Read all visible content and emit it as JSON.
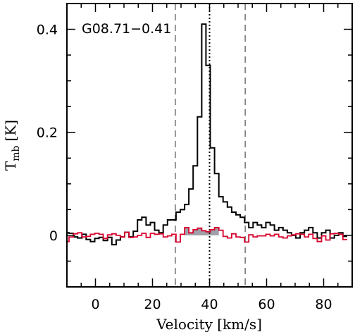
{
  "chart_data": {
    "type": "line",
    "annotation": "G08.71−0.41",
    "xlabel": "Velocity [km/s]",
    "ylabel_main": "T",
    "ylabel_sub": "mb",
    "ylabel_unit": "[K]",
    "xlim": [
      -10,
      90
    ],
    "ylim": [
      -0.1,
      0.45
    ],
    "xticks": [
      0,
      20,
      40,
      60,
      80
    ],
    "xtick_labels": [
      "0",
      "20",
      "40",
      "60",
      "80"
    ],
    "yticks": [
      0,
      0.2,
      0.4
    ],
    "ytick_labels": [
      "0",
      "0.2",
      "0.4"
    ],
    "step_width": 1.5,
    "series": [
      {
        "color": "#000000",
        "x": [
          -10,
          -8.5,
          -7,
          -5.5,
          -4,
          -2.5,
          -1,
          0.5,
          2,
          3.5,
          5,
          6.5,
          8,
          9.5,
          11,
          12.5,
          14,
          15.5,
          17,
          18.5,
          20,
          21.5,
          23,
          24.5,
          26,
          27.5,
          29,
          30.5,
          32,
          33.5,
          35,
          36.5,
          38,
          39.5,
          41,
          42.5,
          44,
          45.5,
          47,
          48.5,
          50,
          51.5,
          53,
          54.5,
          56,
          57.5,
          59,
          60.5,
          62,
          63.5,
          65,
          66.5,
          68,
          69.5,
          71,
          72.5,
          74,
          75.5,
          77,
          78.5,
          80,
          81.5,
          83,
          84.5,
          86,
          87.5
        ],
        "y": [
          0.005,
          0.004,
          -0.003,
          -0.005,
          0.002,
          -0.008,
          -0.012,
          -0.006,
          -0.004,
          -0.01,
          -0.004,
          -0.018,
          -0.009,
          -0.003,
          0.006,
          -0.003,
          0.008,
          0.03,
          0.035,
          0.02,
          0.025,
          0.01,
          0.005,
          0.02,
          0.03,
          0.03,
          0.045,
          0.05,
          0.06,
          0.09,
          0.135,
          0.23,
          0.41,
          0.33,
          0.17,
          0.12,
          0.075,
          0.065,
          0.055,
          0.045,
          0.04,
          0.035,
          0.025,
          0.015,
          0.025,
          0.02,
          0.015,
          0.025,
          0.02,
          0.01,
          0.015,
          0.01,
          0.005,
          0.0,
          -0.005,
          0.005,
          0.01,
          0.015,
          0.005,
          -0.005,
          0.005,
          0.01,
          -0.005,
          0.0,
          0.005,
          -0.002
        ]
      },
      {
        "color": "#d8002a",
        "x": [
          -10,
          -8.5,
          -7,
          -5.5,
          -4,
          -2.5,
          -1,
          0.5,
          2,
          3.5,
          5,
          6.5,
          8,
          9.5,
          11,
          12.5,
          14,
          15.5,
          17,
          18.5,
          20,
          21.5,
          23,
          24.5,
          26,
          27.5,
          29,
          30.5,
          32,
          33.5,
          35,
          36.5,
          38,
          39.5,
          41,
          42.5,
          44,
          45.5,
          47,
          48.5,
          50,
          51.5,
          53,
          54.5,
          56,
          57.5,
          59,
          60.5,
          62,
          63.5,
          65,
          66.5,
          68,
          69.5,
          71,
          72.5,
          74,
          75.5,
          77,
          78.5,
          80,
          81.5,
          83,
          84.5,
          86,
          87.5
        ],
        "y": [
          -0.012,
          -0.003,
          0.003,
          0.005,
          -0.003,
          -0.002,
          0.002,
          0.004,
          0.002,
          -0.006,
          0.001,
          0.003,
          0.0,
          -0.003,
          0.006,
          -0.004,
          -0.003,
          0.0,
          0.004,
          -0.004,
          0.004,
          0.002,
          0.003,
          -0.003,
          -0.001,
          0.002,
          -0.013,
          0.002,
          0.015,
          0.005,
          0.011,
          0.014,
          0.009,
          0.007,
          0.011,
          0.015,
          0.01,
          -0.002,
          -0.005,
          0.003,
          -0.003,
          -0.004,
          -0.013,
          0.001,
          -0.003,
          -0.001,
          -0.001,
          0.002,
          -0.001,
          0.002,
          -0.003,
          -0.005,
          -0.001,
          0.001,
          0.003,
          0.002,
          -0.003,
          0.002,
          -0.006,
          -0.012,
          -0.001,
          -0.009,
          0.003,
          0.004,
          0.002,
          -0.008
        ]
      }
    ],
    "shaded_region": {
      "color": "#a0a0a8",
      "x": [
        32,
        33.5,
        35,
        36.5,
        38,
        39.5,
        41,
        42.5
      ],
      "y": [
        0.015,
        0.005,
        0.011,
        0.014,
        0.009,
        0.007,
        0.011,
        0.015
      ]
    },
    "vlines": [
      {
        "x": 28,
        "style": "dashed",
        "color": "#707070"
      },
      {
        "x": 40,
        "style": "dotted",
        "color": "#000000"
      },
      {
        "x": 52.5,
        "style": "dashed",
        "color": "#707070"
      }
    ]
  }
}
